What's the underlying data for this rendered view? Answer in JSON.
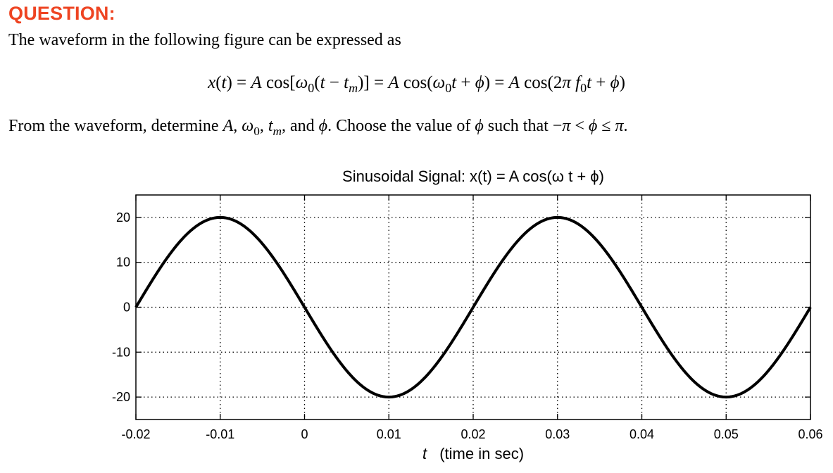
{
  "question": {
    "heading": "QUESTION:",
    "intro": "The waveform in the following figure can be expressed as",
    "equation": {
      "lhs": "x(t)",
      "form1": "A cos[ω₀(t − tₘ)]",
      "form2": "A cos(ω₀t + ϕ)",
      "form3": "A cos(2πf₀t + ϕ)"
    },
    "task_prefix": "From the waveform, determine",
    "task_vars": "A, ω₀, tₘ, and ϕ.",
    "task_suffix": "Choose the value of ϕ such that −π < ϕ ≤ π."
  },
  "chart_data": {
    "type": "line",
    "title": "Sinusoidal Signal:  x(t) = A cos(ω t + ϕ)",
    "xlabel_var": "t",
    "xlabel_desc": "(time in sec)",
    "ylabel": "",
    "xlim": [
      -0.02,
      0.06
    ],
    "ylim": [
      -25,
      25
    ],
    "xticks": [
      -0.02,
      -0.01,
      0,
      0.01,
      0.02,
      0.03,
      0.04,
      0.05,
      0.06
    ],
    "xtick_labels": [
      "-0.02",
      "-0.01",
      "0",
      "0.01",
      "0.02",
      "0.03",
      "0.04",
      "0.05",
      "0.06"
    ],
    "yticks": [
      20,
      10,
      0,
      -10,
      -20
    ],
    "ytick_labels": [
      "20",
      "10",
      "0",
      "-10",
      "-20"
    ],
    "grid": true,
    "grid_style": "dotted",
    "series": [
      {
        "color": "#000000",
        "amplitude": 20,
        "period": 0.04,
        "peak_time": -0.01,
        "x": [
          -0.02,
          -0.015,
          -0.01,
          -0.005,
          0,
          0.005,
          0.01,
          0.015,
          0.02,
          0.025,
          0.03,
          0.035,
          0.04,
          0.045,
          0.05,
          0.055,
          0.06
        ],
        "y": [
          0,
          14.1,
          20,
          14.1,
          0,
          -14.1,
          -20,
          -14.1,
          0,
          14.1,
          20,
          14.1,
          0,
          -14.1,
          -20,
          -14.1,
          0
        ]
      }
    ]
  }
}
